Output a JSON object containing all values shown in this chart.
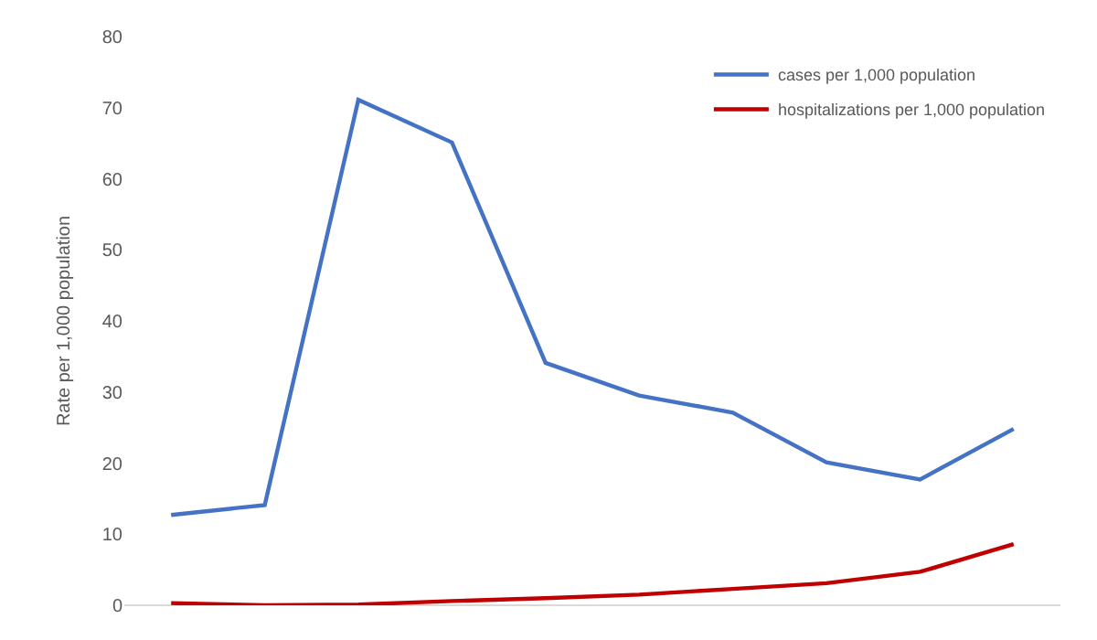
{
  "chart_data": {
    "type": "line",
    "ylabel": "Rate per 1,000 population",
    "categories": [
      null,
      null,
      null,
      null,
      null,
      null,
      null,
      null,
      null,
      null
    ],
    "series": [
      {
        "name": "cases per 1,000 population",
        "color": "#4472c4",
        "values": [
          12.7,
          14.1,
          71.1,
          65.1,
          34.1,
          29.5,
          27.1,
          20.1,
          17.7,
          24.8
        ]
      },
      {
        "name": "hospitalizations per 1,000 population",
        "color": "#c00000",
        "values": [
          0.3,
          0,
          0.1,
          0.6,
          1.0,
          1.5,
          2.3,
          3.1,
          4.7,
          8.6
        ]
      }
    ],
    "ylim": [
      0,
      80
    ],
    "yticks": [
      0,
      10,
      20,
      30,
      40,
      50,
      60,
      70,
      80
    ],
    "grid": false,
    "legend": "top right",
    "marker": "none",
    "line_style": "solid"
  }
}
